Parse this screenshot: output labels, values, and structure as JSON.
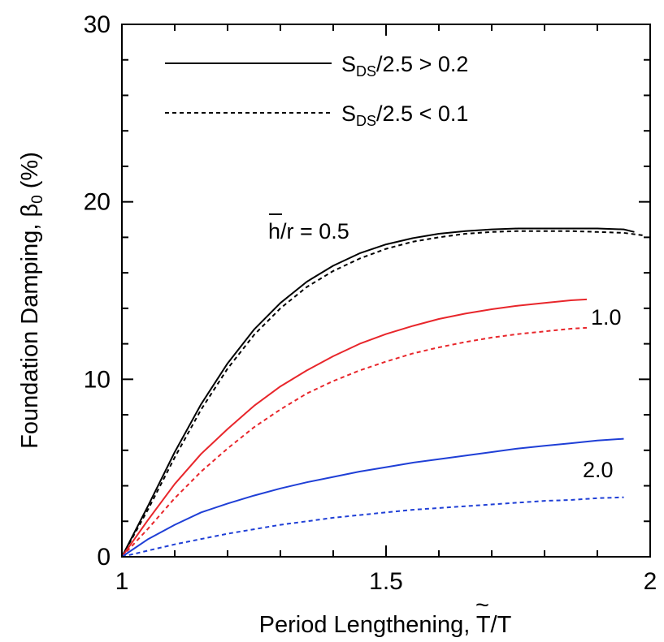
{
  "chart_data": {
    "type": "line",
    "xlabel_prefix": "Period Lengthening, ",
    "xlabel_symbol": "T",
    "xlabel_suffix": "/T",
    "ylabel_prefix": "Foundation Damping, ",
    "ylabel_symbol": "β",
    "ylabel_subscript": "0",
    "ylabel_suffix": " (%)",
    "xlim": [
      1,
      2
    ],
    "ylim": [
      0,
      30
    ],
    "x_ticks": [
      {
        "value": 1,
        "label": "1"
      },
      {
        "value": 1.5,
        "label": "1.5"
      },
      {
        "value": 2,
        "label": "2"
      }
    ],
    "y_ticks": [
      {
        "value": 0,
        "label": "0"
      },
      {
        "value": 10,
        "label": "10"
      },
      {
        "value": 20,
        "label": "20"
      },
      {
        "value": 30,
        "label": "30"
      }
    ],
    "grid": false,
    "legend": {
      "placement": "top-left",
      "entries": [
        {
          "style": "solid",
          "label_prefix": "S",
          "label_sub": "DS",
          "label_suffix": "/2.5 > 0.2"
        },
        {
          "style": "dotted",
          "label_prefix": "S",
          "label_sub": "DS",
          "label_suffix": "/2.5 < 0.1"
        }
      ]
    },
    "annotations": [
      {
        "text_overbar": "h",
        "text": "/r = 0.5"
      },
      {
        "text": "1.0"
      },
      {
        "text": "2.0"
      }
    ],
    "series": [
      {
        "style": "solid",
        "color": "#000000",
        "x": [
          1.0,
          1.05,
          1.1,
          1.15,
          1.2,
          1.25,
          1.3,
          1.35,
          1.4,
          1.45,
          1.5,
          1.55,
          1.6,
          1.65,
          1.7,
          1.75,
          1.8,
          1.85,
          1.9,
          1.95,
          1.97
        ],
        "y": [
          0,
          2.9,
          5.9,
          8.6,
          10.9,
          12.8,
          14.3,
          15.5,
          16.4,
          17.1,
          17.6,
          17.95,
          18.2,
          18.35,
          18.45,
          18.5,
          18.5,
          18.5,
          18.5,
          18.45,
          18.3
        ]
      },
      {
        "style": "dotted",
        "color": "#000000",
        "x": [
          1.0,
          1.05,
          1.1,
          1.15,
          1.2,
          1.25,
          1.3,
          1.35,
          1.4,
          1.45,
          1.5,
          1.55,
          1.6,
          1.65,
          1.7,
          1.75,
          1.8,
          1.85,
          1.9,
          1.95,
          1.99
        ],
        "y": [
          0,
          2.7,
          5.6,
          8.3,
          10.6,
          12.5,
          14.0,
          15.2,
          16.1,
          16.8,
          17.35,
          17.75,
          18.0,
          18.2,
          18.3,
          18.35,
          18.35,
          18.35,
          18.3,
          18.25,
          18.1
        ]
      },
      {
        "style": "solid",
        "color": "#e8262b",
        "x": [
          1.0,
          1.05,
          1.1,
          1.15,
          1.2,
          1.25,
          1.3,
          1.35,
          1.4,
          1.45,
          1.5,
          1.55,
          1.6,
          1.65,
          1.7,
          1.75,
          1.8,
          1.85,
          1.88
        ],
        "y": [
          0,
          2.1,
          4.1,
          5.8,
          7.2,
          8.5,
          9.6,
          10.5,
          11.3,
          12.0,
          12.55,
          13.0,
          13.4,
          13.7,
          13.95,
          14.15,
          14.3,
          14.45,
          14.5
        ]
      },
      {
        "style": "dotted",
        "color": "#e8262b",
        "x": [
          1.0,
          1.05,
          1.1,
          1.15,
          1.2,
          1.25,
          1.3,
          1.35,
          1.4,
          1.45,
          1.5,
          1.55,
          1.6,
          1.65,
          1.7,
          1.75,
          1.8,
          1.85,
          1.88
        ],
        "y": [
          0,
          1.6,
          3.3,
          4.8,
          6.1,
          7.3,
          8.3,
          9.2,
          9.9,
          10.5,
          11.0,
          11.45,
          11.8,
          12.1,
          12.35,
          12.55,
          12.7,
          12.85,
          12.9
        ]
      },
      {
        "style": "solid",
        "color": "#1f3fd6",
        "x": [
          1.0,
          1.05,
          1.1,
          1.15,
          1.2,
          1.25,
          1.3,
          1.35,
          1.4,
          1.45,
          1.5,
          1.55,
          1.6,
          1.65,
          1.7,
          1.75,
          1.8,
          1.85,
          1.9,
          1.95
        ],
        "y": [
          0,
          1.0,
          1.8,
          2.5,
          3.0,
          3.45,
          3.85,
          4.2,
          4.5,
          4.8,
          5.05,
          5.3,
          5.5,
          5.7,
          5.9,
          6.1,
          6.25,
          6.4,
          6.55,
          6.65
        ]
      },
      {
        "style": "dotted",
        "color": "#1f3fd6",
        "x": [
          1.0,
          1.05,
          1.1,
          1.15,
          1.2,
          1.25,
          1.3,
          1.35,
          1.4,
          1.45,
          1.5,
          1.55,
          1.6,
          1.65,
          1.7,
          1.75,
          1.8,
          1.85,
          1.9,
          1.95
        ],
        "y": [
          0,
          0.35,
          0.7,
          1.0,
          1.3,
          1.55,
          1.8,
          2.0,
          2.2,
          2.35,
          2.5,
          2.65,
          2.75,
          2.85,
          2.95,
          3.05,
          3.15,
          3.2,
          3.3,
          3.35
        ]
      }
    ]
  }
}
